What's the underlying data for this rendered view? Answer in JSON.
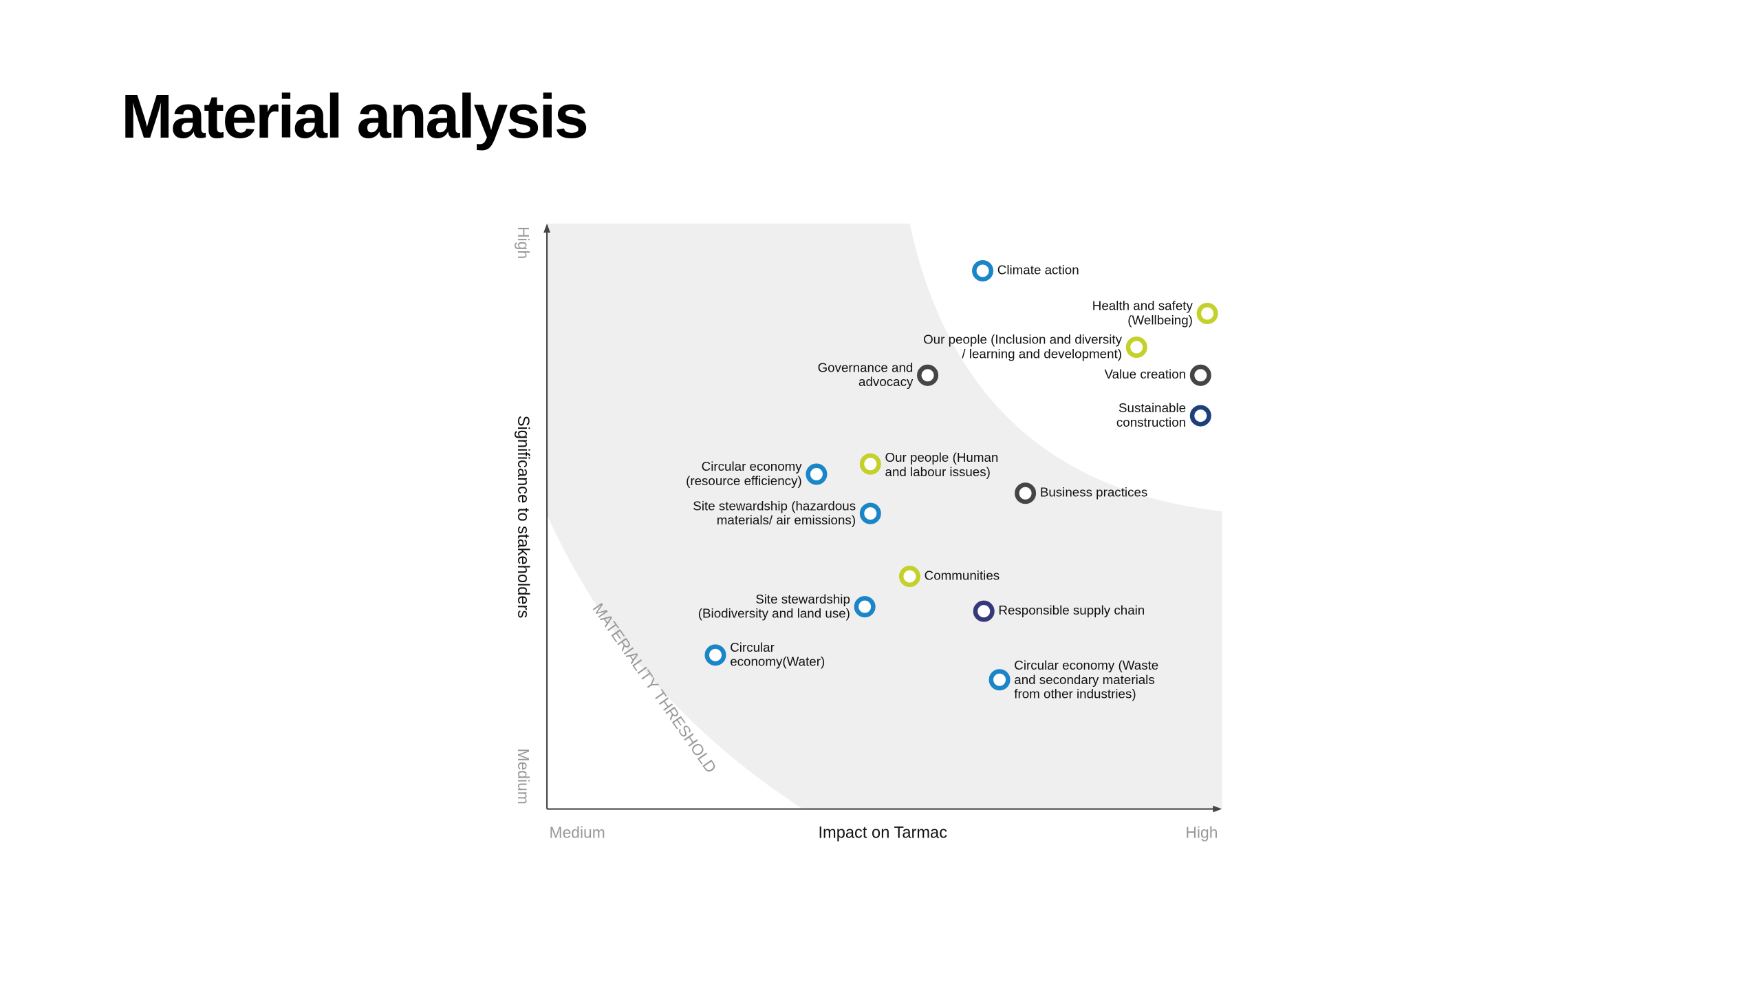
{
  "title": "Material analysis",
  "matrix": {
    "y_axis": {
      "title": "Significance to stakeholders",
      "low": "Medium",
      "high": "High"
    },
    "x_axis": {
      "title": "Impact on Tarmac",
      "low": "Medium",
      "high": "High"
    },
    "threshold_label": "MATERIALITY THRESHOLD",
    "topics": [
      {
        "label_lines": [
          "Climate action"
        ],
        "color": "#1a86c8"
      },
      {
        "label_lines": [
          "Health and safety",
          "(Wellbeing)"
        ],
        "color": "#c3d12a"
      },
      {
        "label_lines": [
          "Our people (Inclusion and diversity",
          "/ learning and development)"
        ],
        "color": "#c3d12a"
      },
      {
        "label_lines": [
          "Governance and",
          "advocacy"
        ],
        "color": "#454545"
      },
      {
        "label_lines": [
          "Value creation"
        ],
        "color": "#454545"
      },
      {
        "label_lines": [
          "Sustainable",
          "construction"
        ],
        "color": "#1d3f7a"
      },
      {
        "label_lines": [
          "Our people (Human",
          "and labour issues)"
        ],
        "color": "#c3d12a"
      },
      {
        "label_lines": [
          "Circular economy",
          "(resource efficiency)"
        ],
        "color": "#1a86c8"
      },
      {
        "label_lines": [
          "Business practices"
        ],
        "color": "#454545"
      },
      {
        "label_lines": [
          "Site stewardship (hazardous",
          "materials/ air emissions)"
        ],
        "color": "#1a86c8"
      },
      {
        "label_lines": [
          "Communities"
        ],
        "color": "#c3d12a"
      },
      {
        "label_lines": [
          "Site stewardship",
          "(Biodiversity and land use)"
        ],
        "color": "#1a86c8"
      },
      {
        "label_lines": [
          "Responsible supply chain"
        ],
        "color": "#35397a"
      },
      {
        "label_lines": [
          "Circular",
          "economy(Water)"
        ],
        "color": "#1a86c8"
      },
      {
        "label_lines": [
          "Circular economy (Waste",
          "and secondary materials",
          "from other industries)"
        ],
        "color": "#1a86c8"
      }
    ]
  }
}
